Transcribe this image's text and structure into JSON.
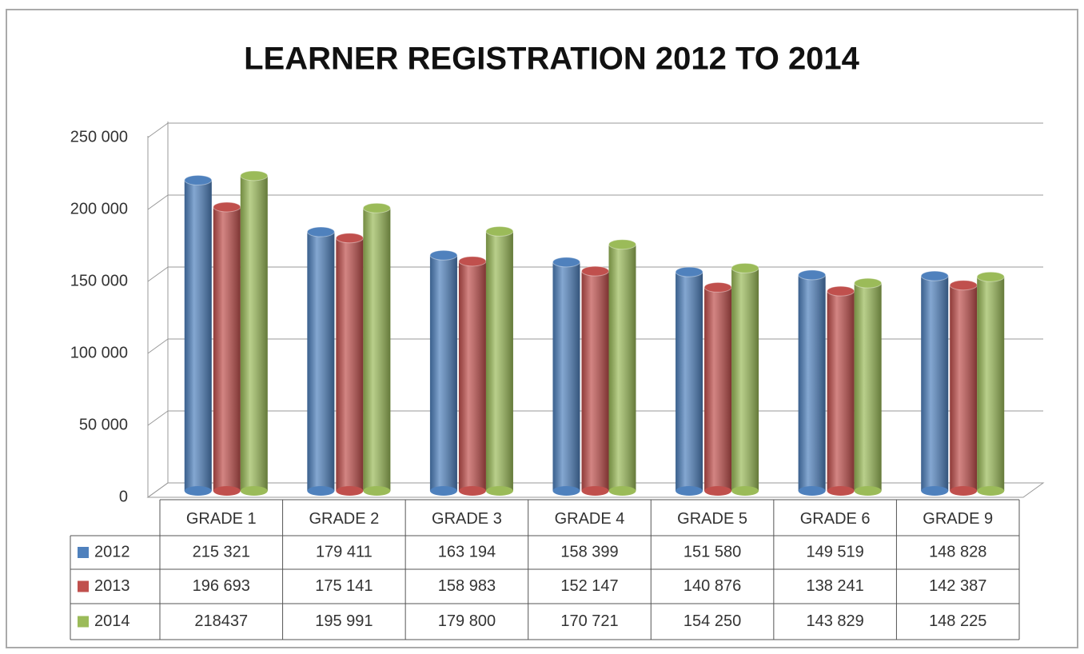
{
  "chart_data": {
    "type": "bar3d",
    "title": "LEARNER REGISTRATION 2012 TO 2014",
    "categories": [
      "GRADE 1",
      "GRADE 2",
      "GRADE 3",
      "GRADE 4",
      "GRADE 5",
      "GRADE 6",
      "GRADE 9"
    ],
    "series": [
      {
        "name": "2012",
        "color": "#4f81bd",
        "values": [
          215321,
          179411,
          163194,
          158399,
          151580,
          149519,
          148828
        ],
        "value_labels": [
          "215 321",
          "179 411",
          "163 194",
          "158 399",
          "151 580",
          "149 519",
          "148 828"
        ]
      },
      {
        "name": "2013",
        "color": "#c0504d",
        "values": [
          196693,
          175141,
          158983,
          152147,
          140876,
          138241,
          142387
        ],
        "value_labels": [
          "196 693",
          "175 141",
          "158 983",
          "152 147",
          "140 876",
          "138 241",
          "142 387"
        ]
      },
      {
        "name": "2014",
        "color": "#9bbb59",
        "values": [
          218437,
          195991,
          179800,
          170721,
          154250,
          143829,
          148225
        ],
        "value_labels": [
          "218437",
          "195 991",
          "179 800",
          "170 721",
          "154 250",
          "143 829",
          "148 225"
        ]
      }
    ],
    "ylim": [
      0,
      250000
    ],
    "yticks": [
      0,
      {
        "value": 50000,
        "label": "50 000"
      },
      {
        "value": 100000,
        "label": "100 000"
      },
      {
        "value": 150000,
        "label": "150 000"
      },
      {
        "value": 200000,
        "label": "200 000"
      },
      {
        "value": 250000,
        "label": "250 000"
      }
    ],
    "grid": true
  }
}
